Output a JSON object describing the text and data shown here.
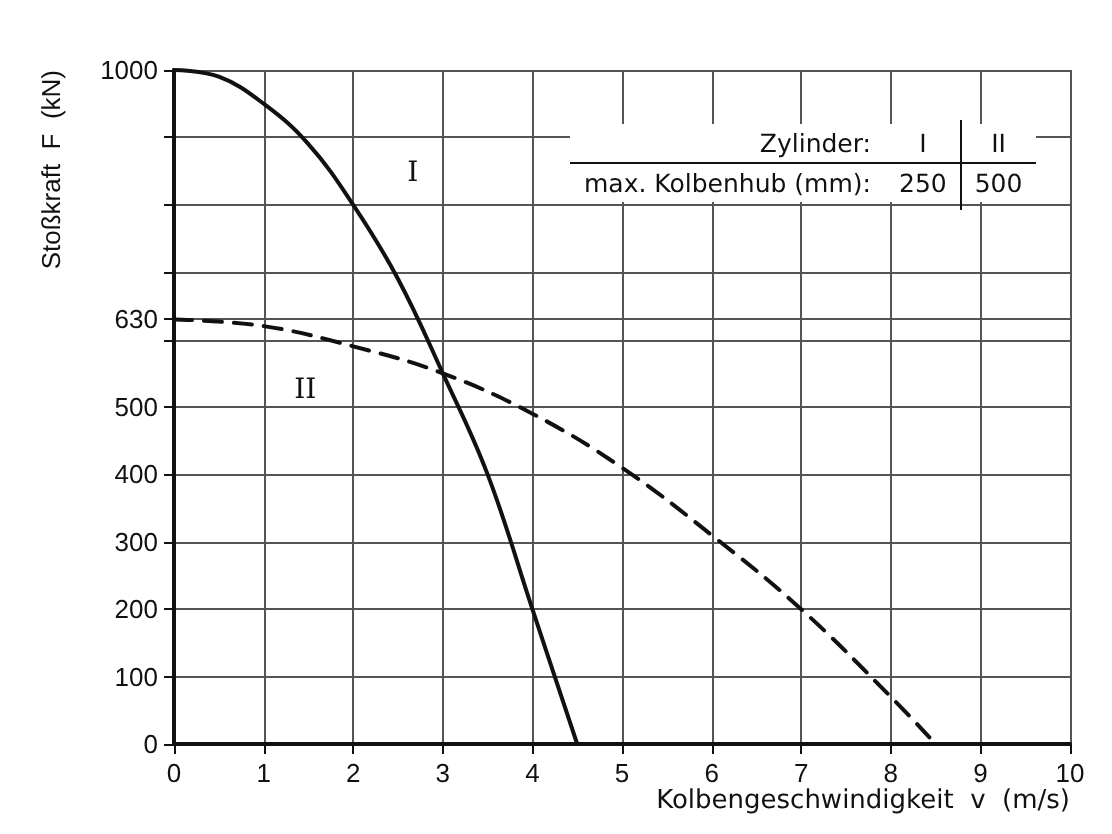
{
  "chart_data": {
    "type": "line",
    "xlabel": "Kolbengeschwindigkeit  v  (m/s)",
    "ylabel": "Stoßkraft  F  (kN)",
    "series": [
      {
        "name": "I",
        "color": "#111111",
        "line_style": "solid",
        "x": [
          0,
          0.5,
          1,
          1.5,
          2,
          2.5,
          3,
          3.5,
          4,
          4.5
        ],
        "values": [
          1000,
          990,
          950,
          890,
          800,
          690,
          550,
          400,
          200,
          0
        ]
      },
      {
        "name": "II",
        "color": "#111111",
        "line_style": "dashed",
        "x": [
          0,
          1,
          2,
          3,
          4,
          5,
          6,
          7,
          8,
          8.5
        ],
        "values": [
          630,
          620,
          590,
          550,
          490,
          410,
          310,
          200,
          70,
          0
        ]
      }
    ],
    "xlim": [
      0,
      10
    ],
    "xticks": [
      0,
      1,
      2,
      3,
      4,
      5,
      6,
      7,
      8,
      9,
      10
    ],
    "ylim": [
      0,
      1000
    ],
    "yticks": [
      0,
      100,
      200,
      300,
      400,
      500,
      {
        "value": 600,
        "label": null
      },
      630,
      {
        "value": 700,
        "label": null
      },
      {
        "value": 800,
        "label": null
      },
      {
        "value": 900,
        "label": null
      },
      1000
    ],
    "annotations": [
      "Zylinder:",
      "I",
      "II",
      "max. Kolbenhub (mm):",
      "250",
      "500"
    ],
    "grid": true,
    "marker": "none",
    "legend": false
  }
}
